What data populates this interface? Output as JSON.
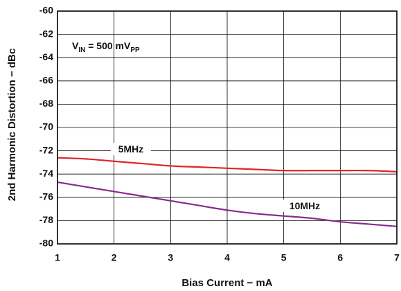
{
  "chart_data": {
    "type": "line",
    "xlabel": "Bias Current − mA",
    "ylabel": "2nd Harmonic Distortion − dBc",
    "xlim": [
      1,
      7
    ],
    "ylim": [
      -80,
      -60
    ],
    "x_ticks": [
      "1",
      "2",
      "3",
      "4",
      "5",
      "6",
      "7"
    ],
    "y_ticks": [
      "-60",
      "-62",
      "-64",
      "-66",
      "-68",
      "-70",
      "-72",
      "-74",
      "-76",
      "-78",
      "-80"
    ],
    "grid": true,
    "annotation": {
      "v": "V",
      "v_sub": "IN",
      "mid": " = 500 mV",
      "pp_sub": "PP"
    },
    "series": [
      {
        "name": "5MHz",
        "color": "#e0242a",
        "x": [
          1,
          1.5,
          2,
          2.5,
          3,
          3.5,
          4,
          4.5,
          5,
          5.5,
          6,
          6.5,
          7
        ],
        "y": [
          -72.6,
          -72.7,
          -72.9,
          -73.1,
          -73.3,
          -73.4,
          -73.5,
          -73.6,
          -73.7,
          -73.7,
          -73.7,
          -73.7,
          -73.8
        ]
      },
      {
        "name": "10MHz",
        "color": "#8a2a8c",
        "x": [
          1,
          1.5,
          2,
          2.5,
          3,
          3.5,
          4,
          4.5,
          5,
          5.5,
          6,
          6.5,
          7
        ],
        "y": [
          -74.7,
          -75.1,
          -75.5,
          -75.9,
          -76.3,
          -76.7,
          -77.1,
          -77.4,
          -77.6,
          -77.8,
          -78.1,
          -78.3,
          -78.5
        ]
      }
    ]
  }
}
